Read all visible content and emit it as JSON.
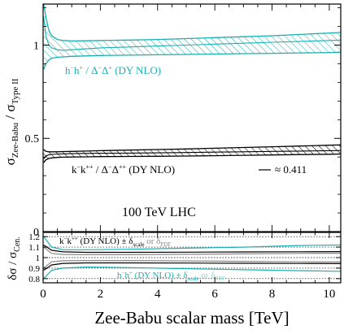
{
  "colors": {
    "teal": "#1aafaf",
    "black": "#000000",
    "gray": "#888888",
    "frame": "#000000"
  },
  "chart_data": [
    {
      "type": "line",
      "panel": "main",
      "ylabel": {
        "prefix": "σ",
        "sub1": "Zee-Babu",
        "mid": " / σ",
        "sub2": "Type II"
      },
      "xlim": [
        0,
        10.4
      ],
      "ylim": [
        0,
        1.22
      ],
      "ytick_labels": [
        "0",
        "0.5",
        "1"
      ],
      "yticks": [
        0,
        0.5,
        1
      ],
      "annotation_energy": "100 TeV LHC",
      "series": [
        {
          "name": "h⁻h⁺ / Δ⁻Δ⁺ (DY NLO)",
          "label_parts": {
            "a": "h",
            "sup_a": "−",
            "b": "h",
            "sup_b": "+",
            "sep": " / ",
            "c": "Δ",
            "sup_c": "−",
            "d": "Δ",
            "sup_d": "+",
            "tail": " (DY NLO)"
          },
          "color": "teal",
          "x": [
            0.02,
            0.1,
            0.2,
            0.3,
            0.5,
            0.7,
            1.0,
            1.5,
            2,
            3,
            4,
            5,
            6,
            7,
            8,
            9,
            10,
            10.4
          ],
          "center": [
            1.15,
            1.05,
            1.0,
            0.985,
            0.975,
            0.972,
            0.975,
            0.98,
            0.985,
            0.99,
            0.995,
            1.0,
            1.005,
            1.01,
            1.015,
            1.02,
            1.025,
            1.027
          ],
          "upper": [
            1.22,
            1.15,
            1.08,
            1.05,
            1.03,
            1.025,
            1.022,
            1.023,
            1.025,
            1.027,
            1.03,
            1.035,
            1.04,
            1.045,
            1.05,
            1.057,
            1.065,
            1.068
          ],
          "lower": [
            0.87,
            0.9,
            0.92,
            0.93,
            0.935,
            0.937,
            0.94,
            0.942,
            0.944,
            0.946,
            0.948,
            0.95,
            0.952,
            0.954,
            0.956,
            0.958,
            0.96,
            0.962
          ]
        },
        {
          "name": "k⁻k⁺⁺ / Δ⁻Δ⁺⁺ (DY NLO)",
          "label_parts": {
            "a": "k",
            "sup_a": "−",
            "b": "k",
            "sup_b": "++",
            "sep": " / ",
            "c": "Δ",
            "sup_c": "−",
            "d": "Δ",
            "sup_d": "++",
            "tail": " (DY NLO)"
          },
          "color": "black",
          "x": [
            0.02,
            0.1,
            0.2,
            0.3,
            0.5,
            0.7,
            1.0,
            1.5,
            2,
            3,
            4,
            5,
            6,
            7,
            8,
            9,
            10,
            10.4
          ],
          "center": [
            0.39,
            0.405,
            0.412,
            0.414,
            0.416,
            0.417,
            0.418,
            0.419,
            0.42,
            0.421,
            0.422,
            0.424,
            0.426,
            0.428,
            0.43,
            0.432,
            0.434,
            0.435
          ],
          "upper": [
            0.44,
            0.43,
            0.428,
            0.428,
            0.428,
            0.429,
            0.43,
            0.432,
            0.434,
            0.437,
            0.44,
            0.443,
            0.447,
            0.451,
            0.455,
            0.459,
            0.463,
            0.465
          ],
          "lower": [
            0.37,
            0.385,
            0.392,
            0.395,
            0.398,
            0.399,
            0.4,
            0.401,
            0.402,
            0.403,
            0.404,
            0.405,
            0.407,
            0.409,
            0.411,
            0.413,
            0.415,
            0.416
          ]
        }
      ],
      "reference_line": {
        "value": 0.411,
        "label": "≈ 0.411"
      }
    },
    {
      "type": "line",
      "panel": "ratio",
      "xlabel": "Zee-Babu scalar mass [TeV]",
      "ylabel": {
        "prefix": "δσ / σ",
        "sub": "Cen."
      },
      "xlim": [
        0,
        10.4
      ],
      "ylim": [
        0.76,
        1.24
      ],
      "xtick_labels": [
        "0",
        "2",
        "4",
        "6",
        "8",
        "10"
      ],
      "xticks": [
        0,
        2,
        4,
        6,
        8,
        10
      ],
      "ytick_labels": [
        "0.8",
        "0.9",
        "1",
        "1.1",
        "1.2"
      ],
      "yticks": [
        0.8,
        0.9,
        1.0,
        1.1,
        1.2
      ],
      "dotted_lines": [
        0.8,
        0.9,
        1.0,
        1.1,
        1.2
      ],
      "labels": {
        "black": {
          "a": "k",
          "sup_a": "−",
          "b": "k",
          "sup_b": "++",
          "tail": " (DY NLO) ± δ",
          "sub_scale": "scale",
          "or": " or δ",
          "sub_pdf": "PDF"
        },
        "teal": {
          "a": "h",
          "sup_a": "−",
          "b": "h",
          "sup_b": "+",
          "tail": " (DY NLO) ± δ",
          "sub_scale": "scale",
          "or": " or δ",
          "sub_pdf": "PDF"
        }
      },
      "series": [
        {
          "color": "teal",
          "x": [
            0.02,
            0.3,
            0.7,
            1.5,
            3,
            5,
            7,
            9,
            10.4
          ],
          "upper": [
            1.2,
            1.1,
            1.075,
            1.075,
            1.08,
            1.09,
            1.1,
            1.115,
            1.12
          ]
        },
        {
          "color": "teal",
          "x": [
            0.02,
            0.3,
            0.7,
            1.5,
            3,
            5,
            7,
            9,
            10.4
          ],
          "upper": [
            0.8,
            0.88,
            0.9,
            0.91,
            0.905,
            0.895,
            0.885,
            0.875,
            0.87
          ]
        },
        {
          "color": "black",
          "x": [
            0.02,
            0.3,
            0.7,
            1.5,
            3,
            5,
            7,
            9,
            10.4
          ],
          "upper": [
            1.12,
            1.07,
            1.055,
            1.05,
            1.05,
            1.052,
            1.054,
            1.056,
            1.057
          ]
        },
        {
          "color": "black",
          "x": [
            0.02,
            0.3,
            0.7,
            1.5,
            3,
            5,
            7,
            9,
            10.4
          ],
          "upper": [
            0.88,
            0.93,
            0.945,
            0.95,
            0.95,
            0.948,
            0.946,
            0.944,
            0.943
          ]
        },
        {
          "color": "gray",
          "x": [
            0.02,
            0.3,
            0.7,
            1.5,
            3,
            5,
            7,
            9,
            10.4
          ],
          "upper": [
            1.1,
            1.04,
            1.03,
            1.028,
            1.028,
            1.032,
            1.036,
            1.04,
            1.042
          ]
        },
        {
          "color": "gray",
          "x": [
            0.02,
            0.3,
            0.7,
            1.5,
            3,
            5,
            7,
            9,
            10.4
          ],
          "upper": [
            0.9,
            0.96,
            0.97,
            0.972,
            0.972,
            0.968,
            0.964,
            0.96,
            0.958
          ]
        }
      ]
    }
  ]
}
